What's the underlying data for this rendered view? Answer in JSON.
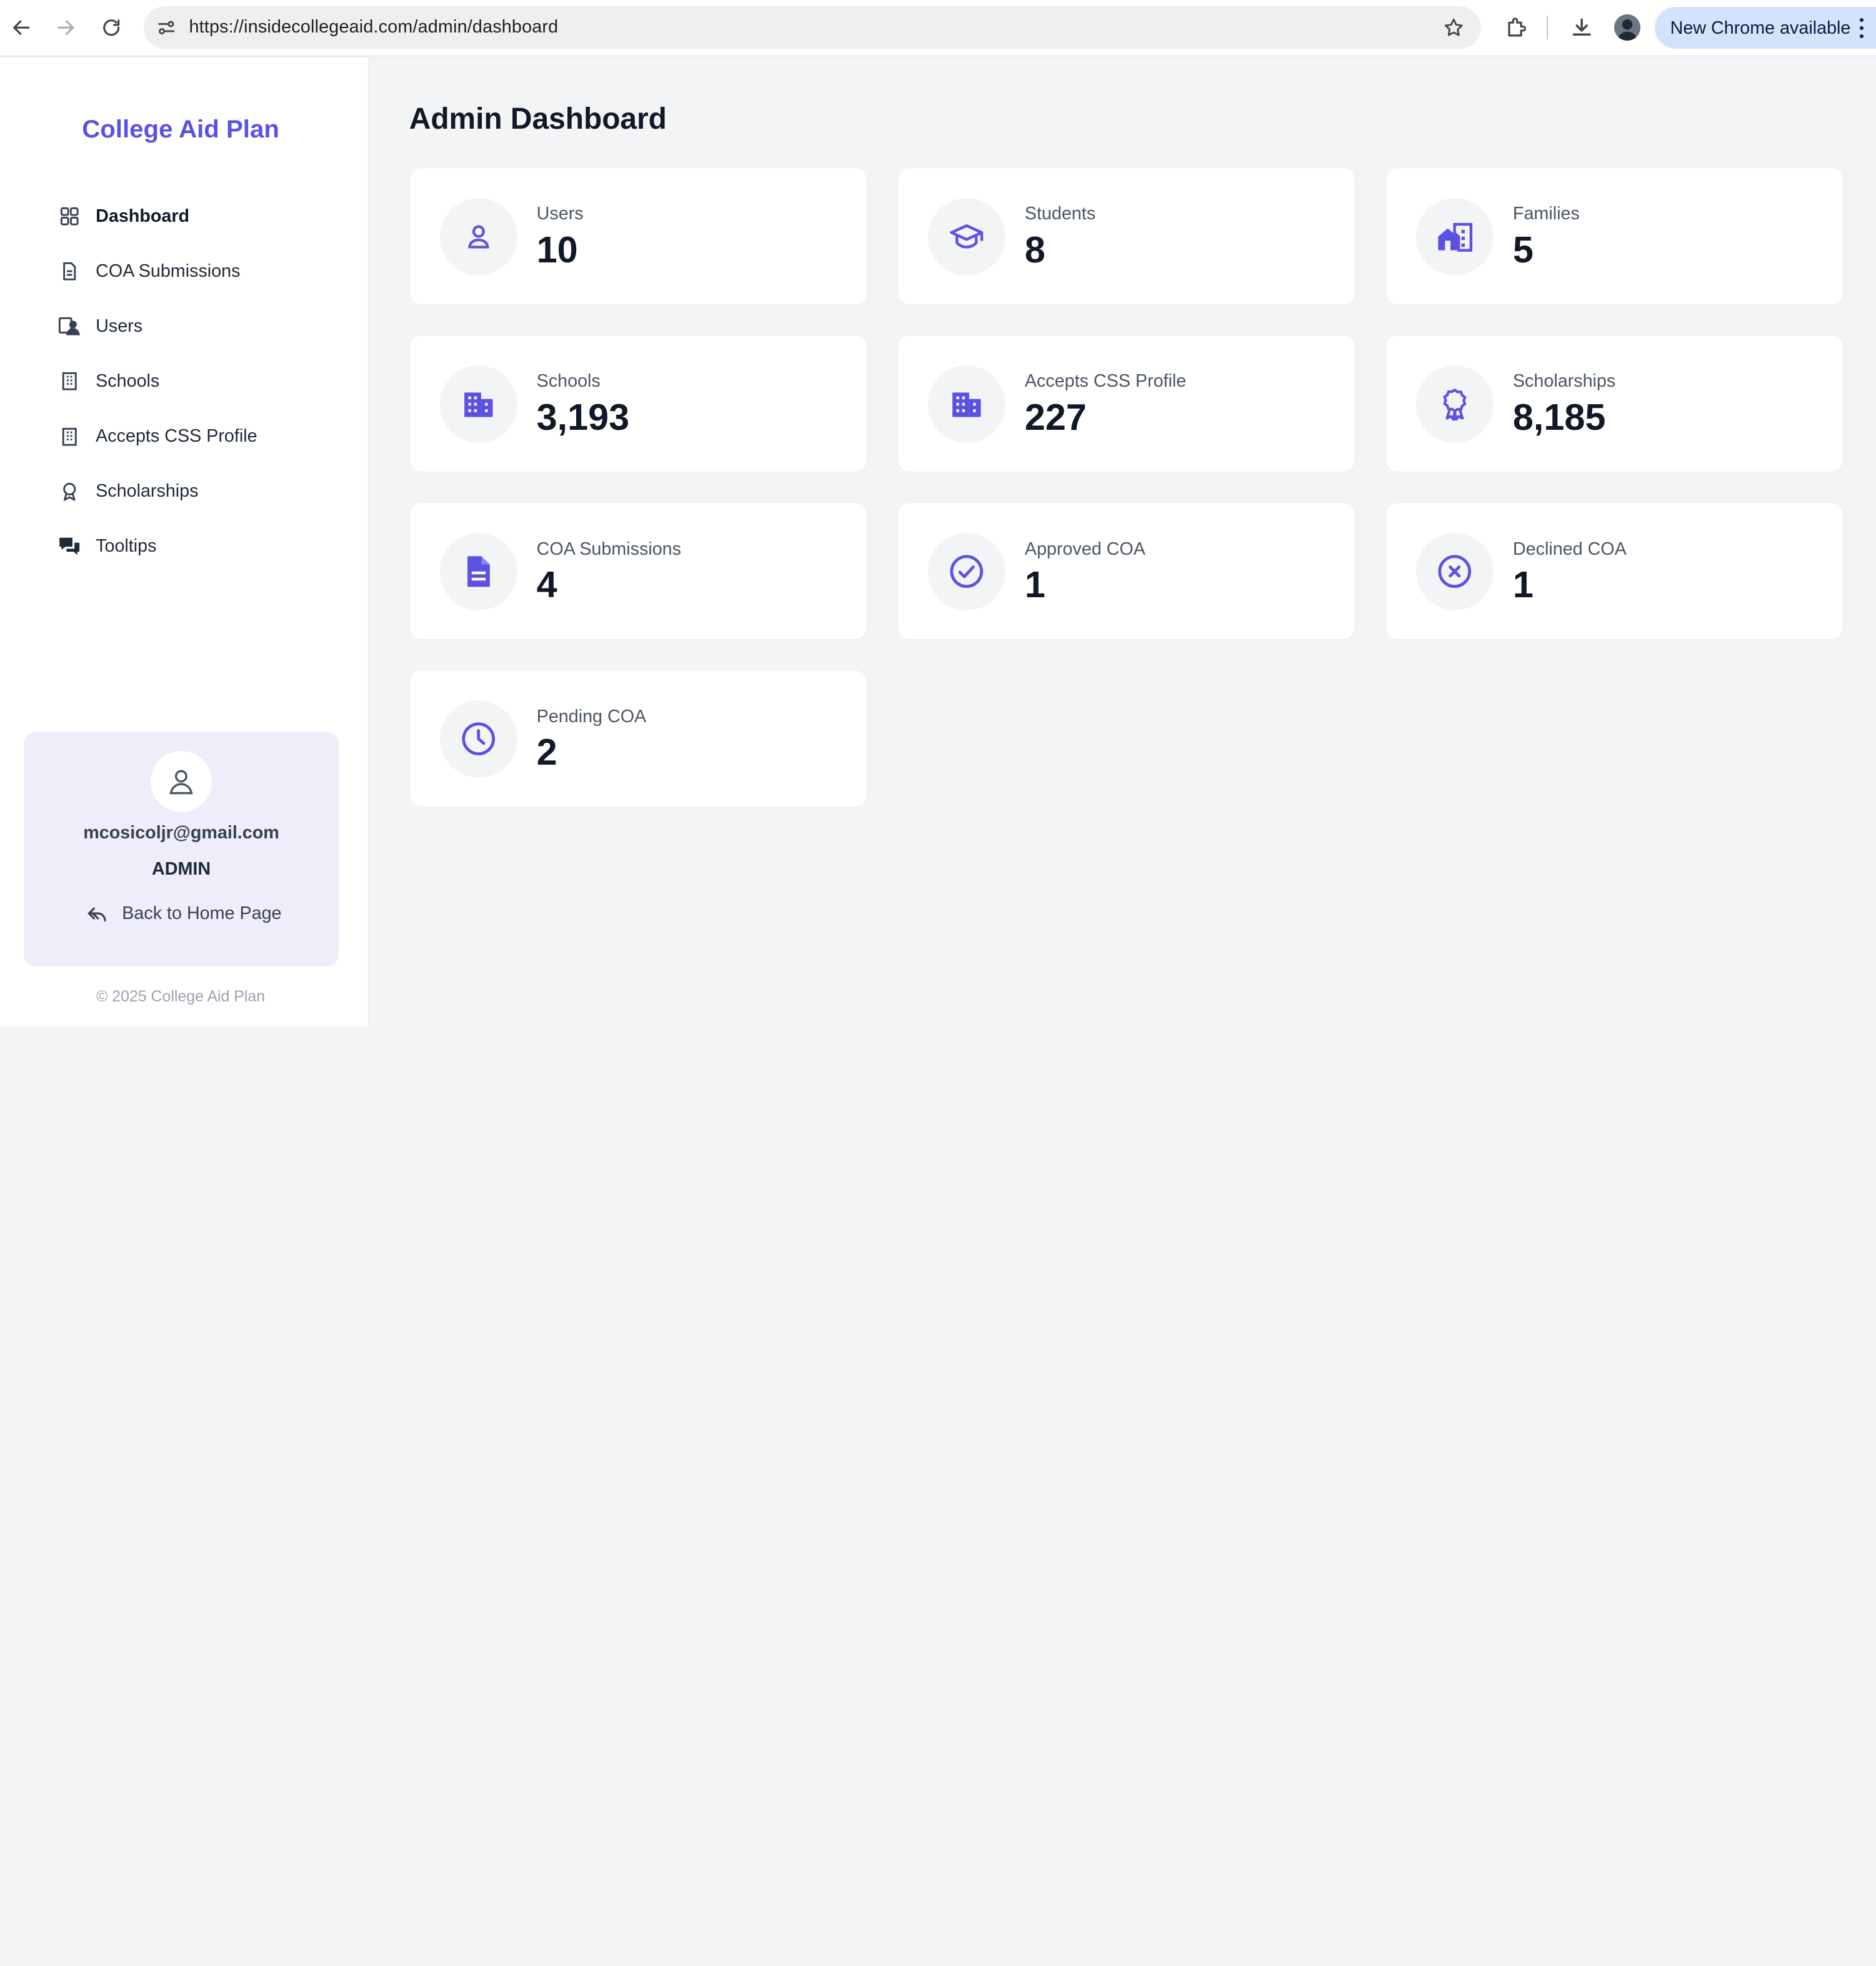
{
  "browser": {
    "url": "https://insidecollegeaid.com/admin/dashboard",
    "update_label": "New Chrome available"
  },
  "sidebar": {
    "brand": "College Aid Plan",
    "items": [
      {
        "label": "Dashboard",
        "icon": "dashboard-grid-icon",
        "active": true
      },
      {
        "label": "COA Submissions",
        "icon": "document-icon"
      },
      {
        "label": "Users",
        "icon": "users-icon"
      },
      {
        "label": "Schools",
        "icon": "building-icon"
      },
      {
        "label": "Accepts CSS Profile",
        "icon": "building-icon"
      },
      {
        "label": "Scholarships",
        "icon": "award-icon"
      },
      {
        "label": "Tooltips",
        "icon": "chat-bubbles-icon"
      }
    ],
    "profile": {
      "email": "mcosicoljr@gmail.com",
      "role": "ADMIN",
      "back_label": "Back to Home Page"
    },
    "copyright": "© 2025 College Aid Plan"
  },
  "main": {
    "title": "Admin Dashboard",
    "accent": "#5b52e3",
    "stats": [
      {
        "label": "Users",
        "value": "10",
        "icon": "user-icon"
      },
      {
        "label": "Students",
        "value": "8",
        "icon": "graduation-cap-icon"
      },
      {
        "label": "Families",
        "value": "5",
        "icon": "home-buildings-icon"
      },
      {
        "label": "Schools",
        "value": "3,193",
        "icon": "building-icon"
      },
      {
        "label": "Accepts CSS Profile",
        "value": "227",
        "icon": "building-icon"
      },
      {
        "label": "Scholarships",
        "value": "8,185",
        "icon": "award-icon"
      },
      {
        "label": "COA Submissions",
        "value": "4",
        "icon": "document-icon"
      },
      {
        "label": "Approved COA",
        "value": "1",
        "icon": "check-circle-icon"
      },
      {
        "label": "Declined COA",
        "value": "1",
        "icon": "x-circle-icon"
      },
      {
        "label": "Pending COA",
        "value": "2",
        "icon": "clock-icon"
      }
    ]
  }
}
